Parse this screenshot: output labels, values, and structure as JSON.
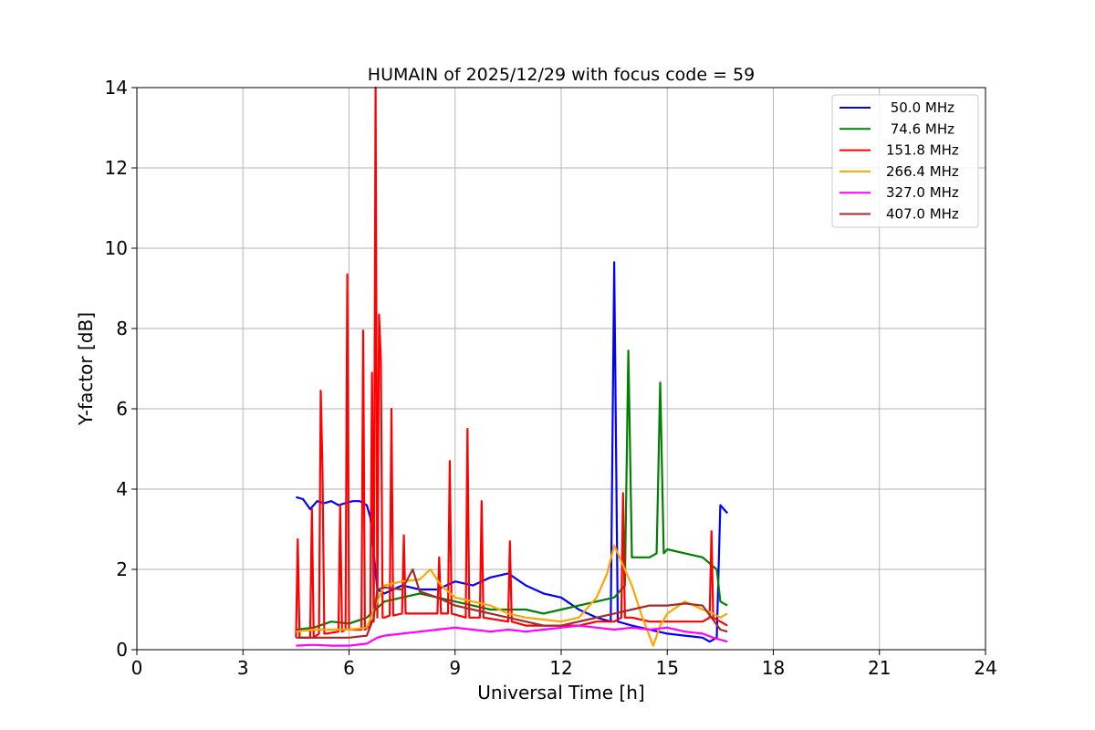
{
  "chart_data": {
    "type": "line",
    "title": "HUMAIN of 2025/12/29 with focus code = 59",
    "xlabel": "Universal Time [h]",
    "ylabel": "Y-factor [dB]",
    "xlim": [
      0,
      24
    ],
    "ylim": [
      0,
      14
    ],
    "xticks": [
      0,
      3,
      6,
      9,
      12,
      15,
      18,
      21,
      24
    ],
    "yticks": [
      0,
      2,
      4,
      6,
      8,
      10,
      12,
      14
    ],
    "grid": true,
    "legend_position": "top-right",
    "series": [
      {
        "name": " 50.0 MHz",
        "color": "#0000ff",
        "x": [
          4.5,
          4.7,
          4.9,
          5.1,
          5.3,
          5.5,
          5.7,
          5.9,
          6.1,
          6.3,
          6.5,
          6.6,
          6.8,
          7.0,
          7.5,
          8.0,
          8.5,
          9.0,
          9.5,
          10.0,
          10.5,
          11.0,
          11.5,
          12.0,
          12.5,
          13.0,
          13.4,
          13.5,
          13.6,
          14.0,
          14.5,
          15.0,
          15.5,
          16.0,
          16.2,
          16.4,
          16.5,
          16.7
        ],
        "y": [
          3.8,
          3.75,
          3.5,
          3.7,
          3.65,
          3.7,
          3.6,
          3.65,
          3.7,
          3.7,
          3.6,
          3.3,
          1.5,
          1.4,
          1.6,
          1.5,
          1.5,
          1.7,
          1.6,
          1.8,
          1.9,
          1.6,
          1.4,
          1.3,
          1.0,
          0.8,
          0.7,
          9.65,
          0.7,
          0.6,
          0.5,
          0.4,
          0.35,
          0.3,
          0.2,
          0.3,
          3.6,
          3.4
        ]
      },
      {
        "name": " 74.6 MHz",
        "color": "#008000",
        "x": [
          4.5,
          5.0,
          5.5,
          6.0,
          6.5,
          7.0,
          7.5,
          8.0,
          8.5,
          9.0,
          9.5,
          10.0,
          10.5,
          11.0,
          11.5,
          12.0,
          12.5,
          13.0,
          13.5,
          13.8,
          13.9,
          14.0,
          14.5,
          14.7,
          14.8,
          14.9,
          15.0,
          15.5,
          16.0,
          16.4,
          16.5,
          16.7
        ],
        "y": [
          0.5,
          0.55,
          0.7,
          0.65,
          0.8,
          1.2,
          1.3,
          1.4,
          1.3,
          1.2,
          1.1,
          1.0,
          1.0,
          1.0,
          0.9,
          1.0,
          1.1,
          1.2,
          1.3,
          1.6,
          7.45,
          2.3,
          2.3,
          2.4,
          6.65,
          2.4,
          2.5,
          2.4,
          2.3,
          2.0,
          1.2,
          1.1
        ]
      },
      {
        "name": "151.8 MHz",
        "color": "#ff0000",
        "x": [
          4.5,
          4.55,
          4.6,
          4.9,
          4.95,
          5.0,
          5.15,
          5.2,
          5.25,
          5.3,
          5.35,
          5.7,
          5.75,
          5.8,
          5.9,
          5.95,
          6.0,
          6.35,
          6.4,
          6.45,
          6.6,
          6.65,
          6.7,
          6.75,
          6.8,
          6.85,
          6.9,
          6.95,
          7.0,
          7.15,
          7.2,
          7.25,
          7.5,
          7.55,
          7.6,
          8.0,
          8.5,
          8.55,
          8.6,
          8.8,
          8.85,
          8.9,
          9.3,
          9.35,
          9.4,
          9.7,
          9.75,
          9.8,
          10.5,
          10.55,
          10.6,
          11.0,
          11.5,
          12.0,
          12.5,
          13.0,
          13.5,
          13.7,
          13.75,
          13.8,
          14.0,
          14.5,
          15.0,
          15.5,
          16.0,
          16.2,
          16.25,
          16.3,
          16.5,
          16.7
        ],
        "y": [
          0.3,
          2.75,
          0.3,
          0.3,
          3.5,
          0.3,
          0.4,
          6.45,
          4.5,
          0.4,
          0.4,
          0.45,
          3.6,
          0.45,
          0.5,
          9.35,
          0.5,
          0.5,
          7.95,
          0.5,
          0.6,
          6.9,
          0.7,
          14.0,
          0.8,
          8.35,
          7.2,
          0.8,
          0.8,
          0.85,
          6.0,
          0.85,
          0.9,
          2.85,
          0.9,
          0.9,
          0.9,
          2.3,
          0.9,
          0.9,
          4.7,
          0.9,
          0.8,
          5.5,
          0.8,
          0.8,
          3.7,
          0.8,
          0.7,
          2.7,
          0.7,
          0.6,
          0.6,
          0.6,
          0.6,
          0.7,
          0.7,
          0.8,
          3.9,
          0.8,
          0.8,
          0.7,
          0.7,
          0.7,
          0.7,
          0.8,
          2.95,
          0.8,
          0.7,
          0.6
        ]
      },
      {
        "name": "266.4 MHz",
        "color": "#ffa500",
        "x": [
          4.5,
          5.0,
          5.5,
          6.0,
          6.5,
          6.8,
          7.0,
          7.5,
          8.0,
          8.3,
          8.6,
          9.0,
          9.5,
          10.0,
          10.5,
          11.0,
          11.5,
          12.0,
          12.5,
          13.0,
          13.3,
          13.5,
          13.7,
          14.0,
          14.3,
          14.6,
          14.8,
          15.0,
          15.5,
          16.0,
          16.3,
          16.5,
          16.7
        ],
        "y": [
          0.45,
          0.5,
          0.5,
          0.5,
          0.55,
          1.2,
          1.6,
          1.7,
          1.75,
          2.0,
          1.6,
          1.3,
          1.2,
          1.1,
          0.9,
          0.8,
          0.75,
          0.7,
          0.8,
          1.3,
          1.9,
          2.6,
          2.2,
          1.6,
          0.8,
          0.1,
          0.6,
          0.9,
          1.2,
          1.0,
          0.9,
          0.8,
          0.9
        ]
      },
      {
        "name": "327.0 MHz",
        "color": "#ff00ff",
        "x": [
          4.5,
          5.0,
          5.5,
          6.0,
          6.5,
          6.8,
          7.0,
          7.5,
          8.0,
          8.5,
          9.0,
          9.5,
          10.0,
          10.5,
          11.0,
          11.5,
          12.0,
          12.5,
          13.0,
          13.5,
          14.0,
          14.5,
          15.0,
          15.5,
          16.0,
          16.3,
          16.5,
          16.7
        ],
        "y": [
          0.1,
          0.12,
          0.1,
          0.1,
          0.15,
          0.3,
          0.35,
          0.4,
          0.45,
          0.5,
          0.55,
          0.5,
          0.45,
          0.5,
          0.45,
          0.5,
          0.55,
          0.6,
          0.55,
          0.5,
          0.55,
          0.5,
          0.55,
          0.45,
          0.4,
          0.3,
          0.25,
          0.2
        ]
      },
      {
        "name": "407.0 MHz",
        "color": "#a52a2a",
        "x": [
          4.5,
          5.0,
          5.5,
          6.0,
          6.5,
          6.7,
          6.8,
          7.0,
          7.5,
          7.8,
          8.0,
          8.5,
          9.0,
          9.5,
          10.0,
          10.5,
          11.0,
          11.5,
          12.0,
          12.5,
          13.0,
          13.5,
          14.0,
          14.5,
          15.0,
          15.5,
          16.0,
          16.5,
          16.7
        ],
        "y": [
          0.3,
          0.3,
          0.3,
          0.3,
          0.35,
          0.8,
          1.5,
          1.55,
          1.5,
          2.0,
          1.45,
          1.3,
          1.1,
          1.0,
          0.9,
          0.8,
          0.7,
          0.6,
          0.6,
          0.7,
          0.8,
          0.9,
          1.0,
          1.1,
          1.1,
          1.15,
          1.1,
          0.5,
          0.45
        ]
      }
    ]
  }
}
